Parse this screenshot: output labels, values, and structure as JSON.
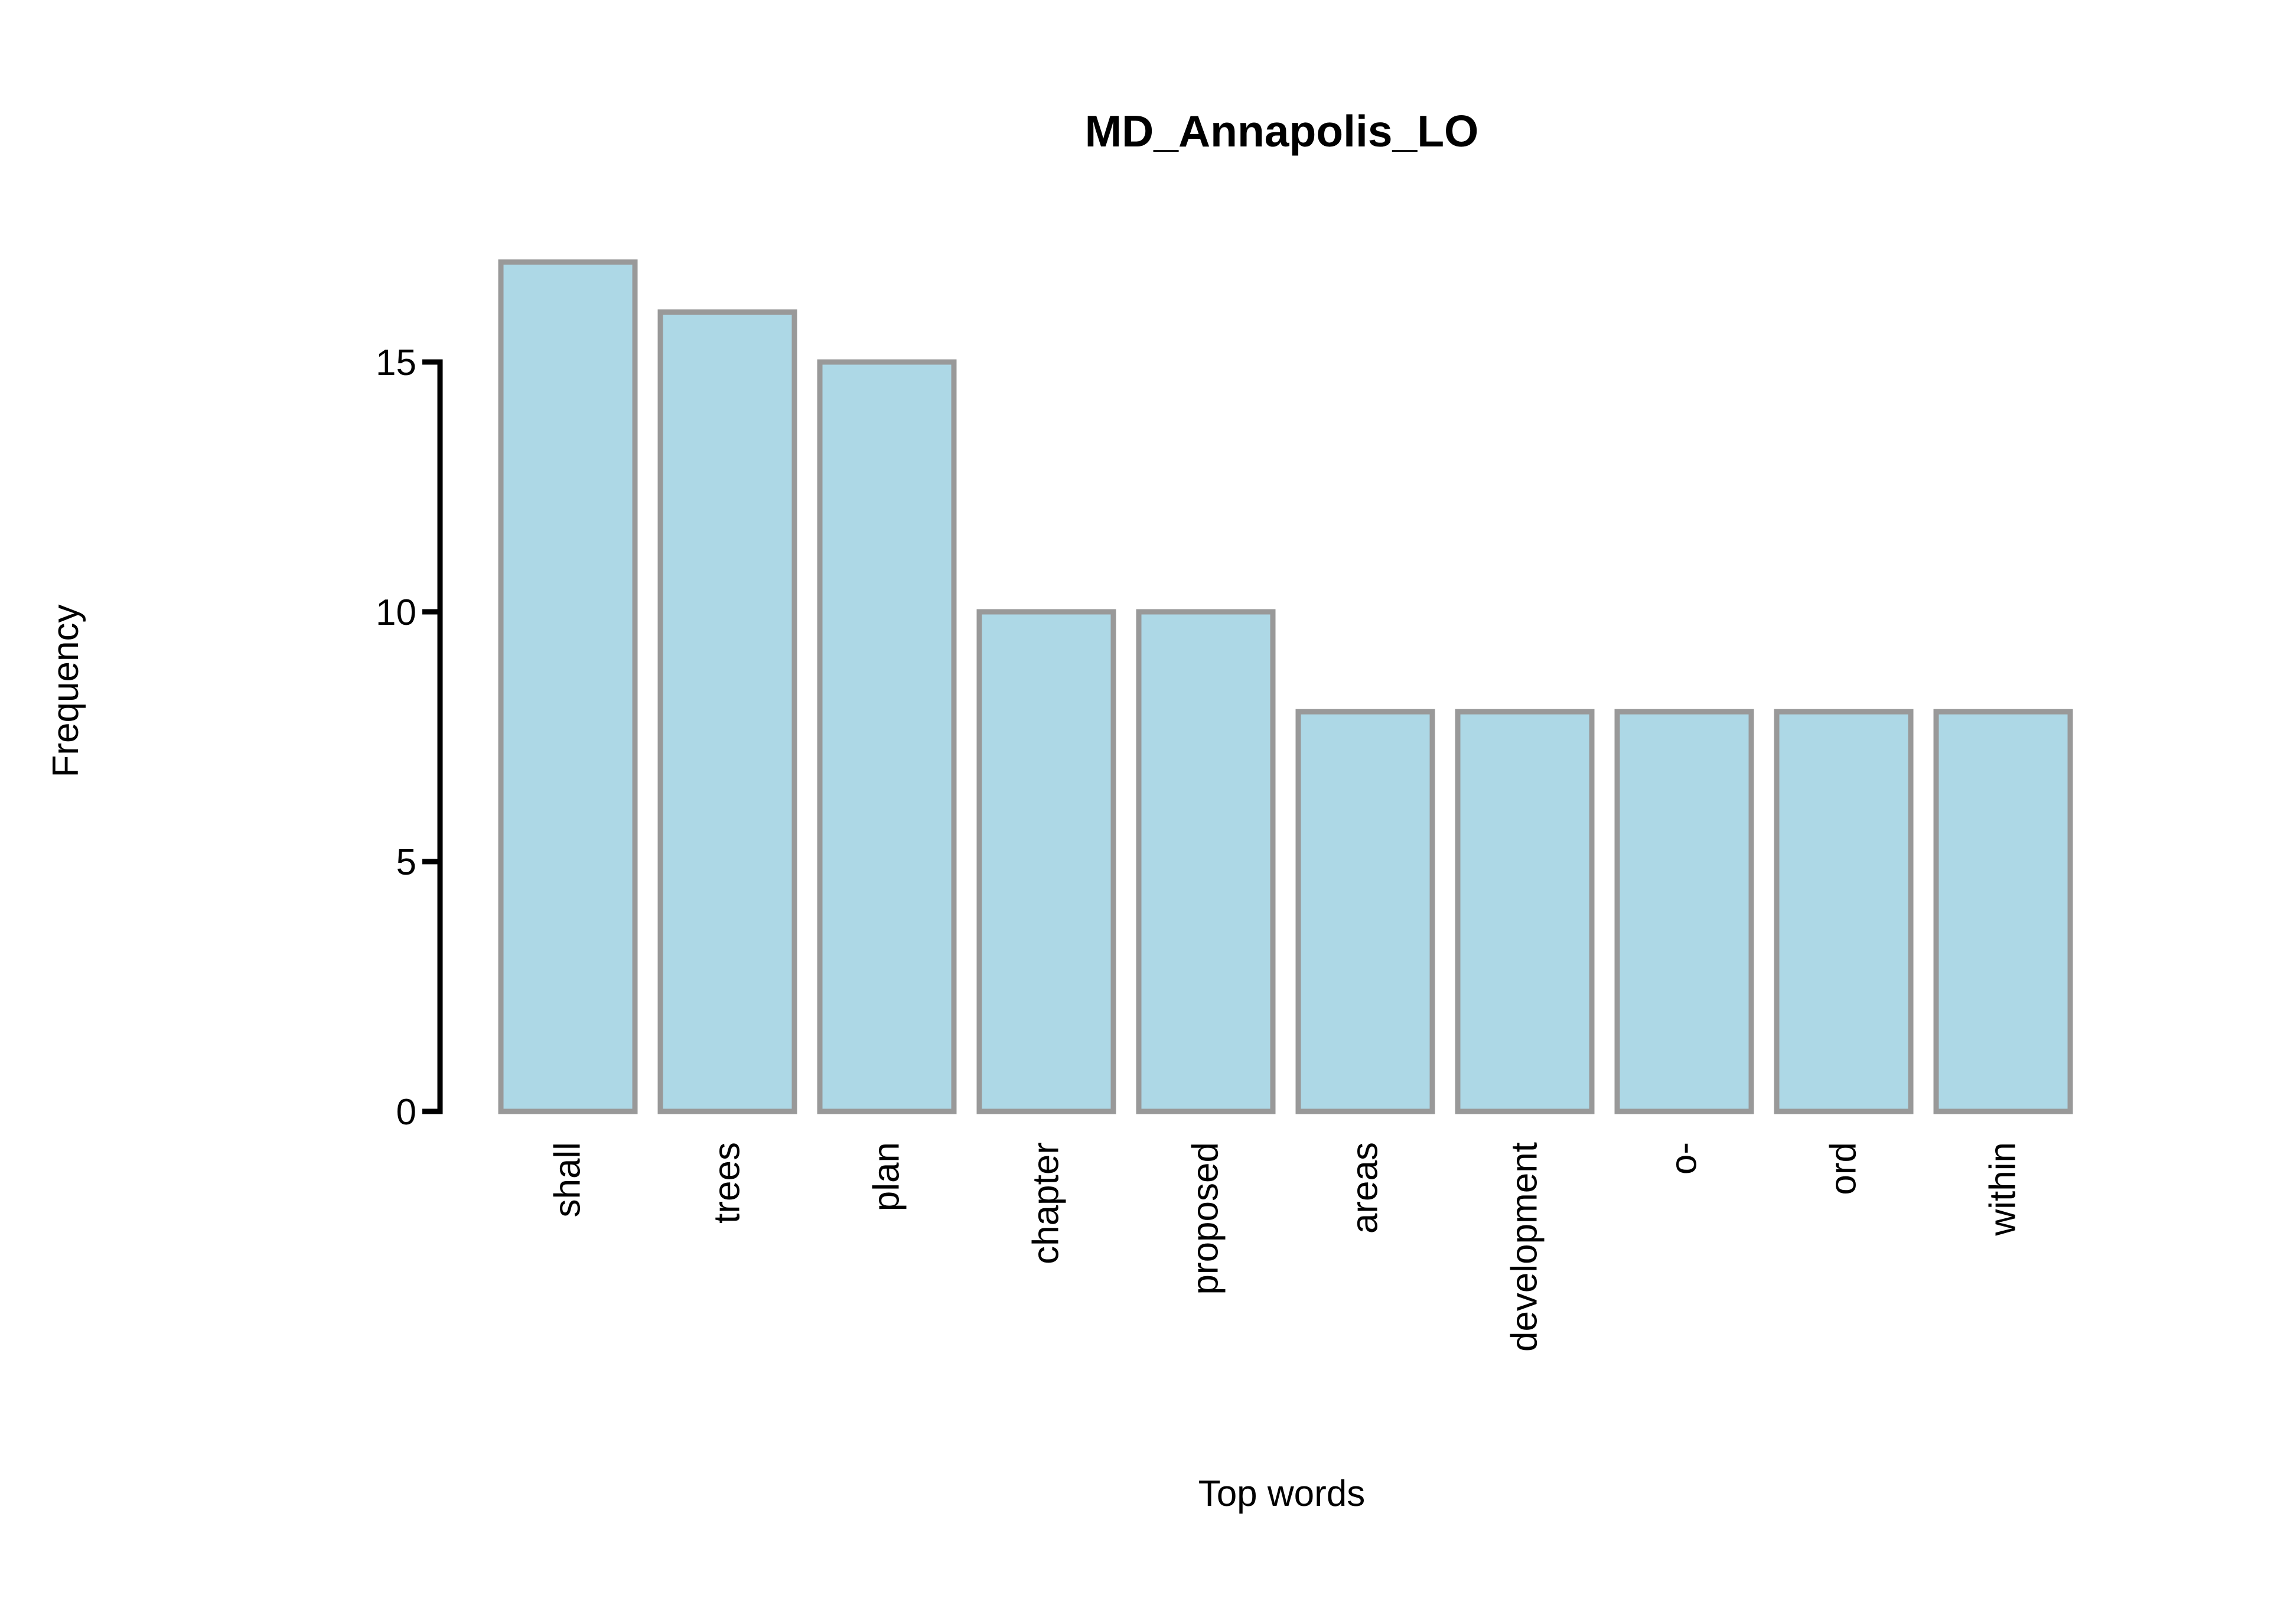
{
  "chart_data": {
    "type": "bar",
    "title": "MD_Annapolis_LO",
    "xlabel": "Top words",
    "ylabel": "Frequency",
    "categories": [
      "shall",
      "trees",
      "plan",
      "chapter",
      "proposed",
      "areas",
      "development",
      "o-",
      "ord",
      "within"
    ],
    "values": [
      17,
      16,
      15,
      10,
      10,
      8,
      8,
      8,
      8,
      8
    ],
    "yticks": [
      0,
      5,
      10,
      15
    ],
    "ylim": [
      0,
      17
    ],
    "grid": false,
    "bar_fill": "#add8e6",
    "bar_stroke": "#999999"
  }
}
